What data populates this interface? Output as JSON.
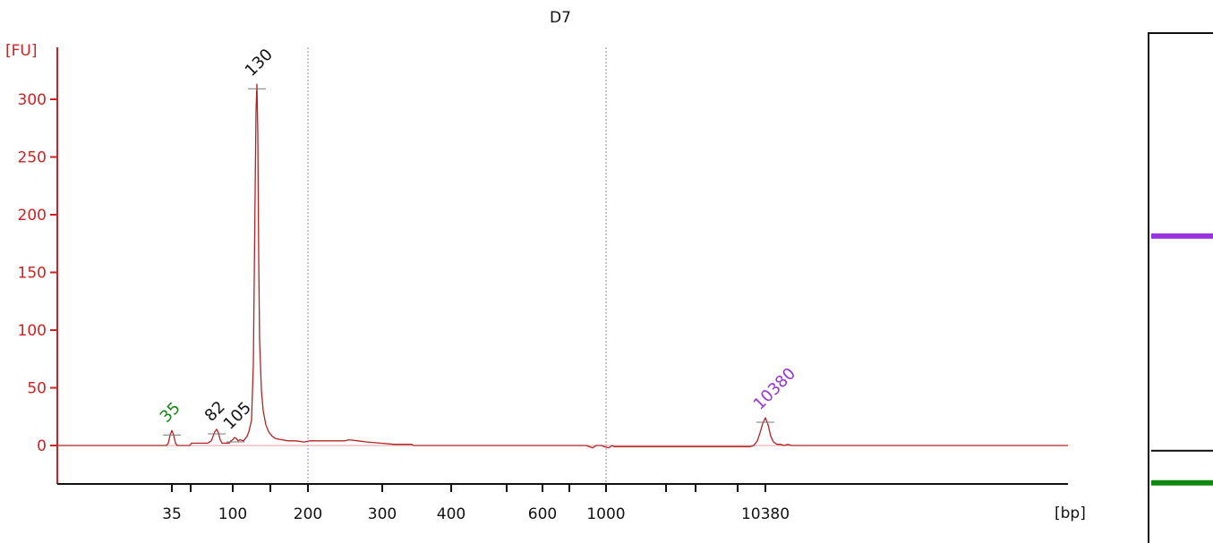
{
  "chart_data": {
    "type": "line",
    "title": "D7",
    "ylabel": "[FU]",
    "xlabel": "[bp]",
    "ylim": [
      -33,
      345
    ],
    "yticks": [
      0,
      50,
      100,
      150,
      200,
      250,
      300
    ],
    "xticks": [
      {
        "label": "35",
        "pos": 192
      },
      {
        "label": "",
        "pos": 213
      },
      {
        "label": "100",
        "pos": 260
      },
      {
        "label": "",
        "pos": 302
      },
      {
        "label": "200",
        "pos": 344
      },
      {
        "label": "300",
        "pos": 427
      },
      {
        "label": "400",
        "pos": 504
      },
      {
        "label": "",
        "pos": 566
      },
      {
        "label": "600",
        "pos": 606
      },
      {
        "label": "",
        "pos": 636
      },
      {
        "label": "1000",
        "pos": 677
      },
      {
        "label": "",
        "pos": 744
      },
      {
        "label": "",
        "pos": 777
      },
      {
        "label": "",
        "pos": 824
      },
      {
        "label": "10380",
        "pos": 855
      }
    ],
    "peaks": [
      {
        "label": "35",
        "pos": 192,
        "value": 13,
        "color": "#118811"
      },
      {
        "label": "82",
        "pos": 242,
        "value": 14,
        "color": "#111111"
      },
      {
        "label": "105",
        "pos": 263,
        "value": 7,
        "color": "#111111"
      },
      {
        "label": "130",
        "pos": 287,
        "value": 313,
        "color": "#111111"
      },
      {
        "label": "10380",
        "pos": 855,
        "value": 24,
        "color": "#9933dd"
      }
    ],
    "series": [
      {
        "color": "#b22222",
        "points": [
          [
            64,
            0
          ],
          [
            186,
            0
          ],
          [
            188,
            2
          ],
          [
            190,
            9
          ],
          [
            192,
            13
          ],
          [
            194,
            9
          ],
          [
            196,
            2
          ],
          [
            198,
            0
          ],
          [
            212,
            0
          ],
          [
            214,
            2
          ],
          [
            232,
            2
          ],
          [
            236,
            4
          ],
          [
            238,
            8
          ],
          [
            240,
            12
          ],
          [
            242,
            14
          ],
          [
            244,
            11
          ],
          [
            246,
            5
          ],
          [
            248,
            2
          ],
          [
            256,
            2
          ],
          [
            258,
            4
          ],
          [
            260,
            5
          ],
          [
            262,
            7
          ],
          [
            264,
            6
          ],
          [
            266,
            4
          ],
          [
            268,
            5
          ],
          [
            272,
            4
          ],
          [
            276,
            8
          ],
          [
            278,
            12
          ],
          [
            281,
            22
          ],
          [
            283,
            70
          ],
          [
            285,
            220
          ],
          [
            286,
            290
          ],
          [
            287,
            313
          ],
          [
            288,
            270
          ],
          [
            289,
            160
          ],
          [
            290,
            90
          ],
          [
            292,
            48
          ],
          [
            294,
            30
          ],
          [
            297,
            18
          ],
          [
            300,
            12
          ],
          [
            304,
            8
          ],
          [
            308,
            6
          ],
          [
            315,
            5
          ],
          [
            322,
            4
          ],
          [
            330,
            4
          ],
          [
            340,
            3
          ],
          [
            346,
            4
          ],
          [
            360,
            4
          ],
          [
            375,
            4
          ],
          [
            385,
            4
          ],
          [
            390,
            5
          ],
          [
            400,
            4
          ],
          [
            410,
            3
          ],
          [
            425,
            2
          ],
          [
            440,
            1
          ],
          [
            460,
            1
          ],
          [
            462,
            0
          ],
          [
            655,
            0
          ],
          [
            658,
            -1
          ],
          [
            662,
            -2
          ],
          [
            666,
            0
          ],
          [
            672,
            0
          ],
          [
            675,
            -1
          ],
          [
            680,
            -2
          ],
          [
            684,
            0
          ],
          [
            686,
            -1
          ],
          [
            700,
            -1
          ],
          [
            760,
            -1
          ],
          [
            838,
            -1
          ],
          [
            842,
            0
          ],
          [
            846,
            4
          ],
          [
            849,
            11
          ],
          [
            852,
            19
          ],
          [
            855,
            24
          ],
          [
            858,
            18
          ],
          [
            861,
            8
          ],
          [
            864,
            3
          ],
          [
            868,
            1
          ],
          [
            872,
            1
          ],
          [
            876,
            0
          ],
          [
            880,
            1
          ],
          [
            884,
            0
          ],
          [
            1193,
            0
          ]
        ]
      }
    ],
    "gel": {
      "bands": [
        {
          "name": "upper-marker",
          "color": "#9933dd",
          "frac": 0.398
        },
        {
          "name": "sample-band",
          "color": "#111111",
          "frac": 0.819
        },
        {
          "name": "lower-marker",
          "color": "#118811",
          "frac": 0.882
        }
      ]
    }
  }
}
